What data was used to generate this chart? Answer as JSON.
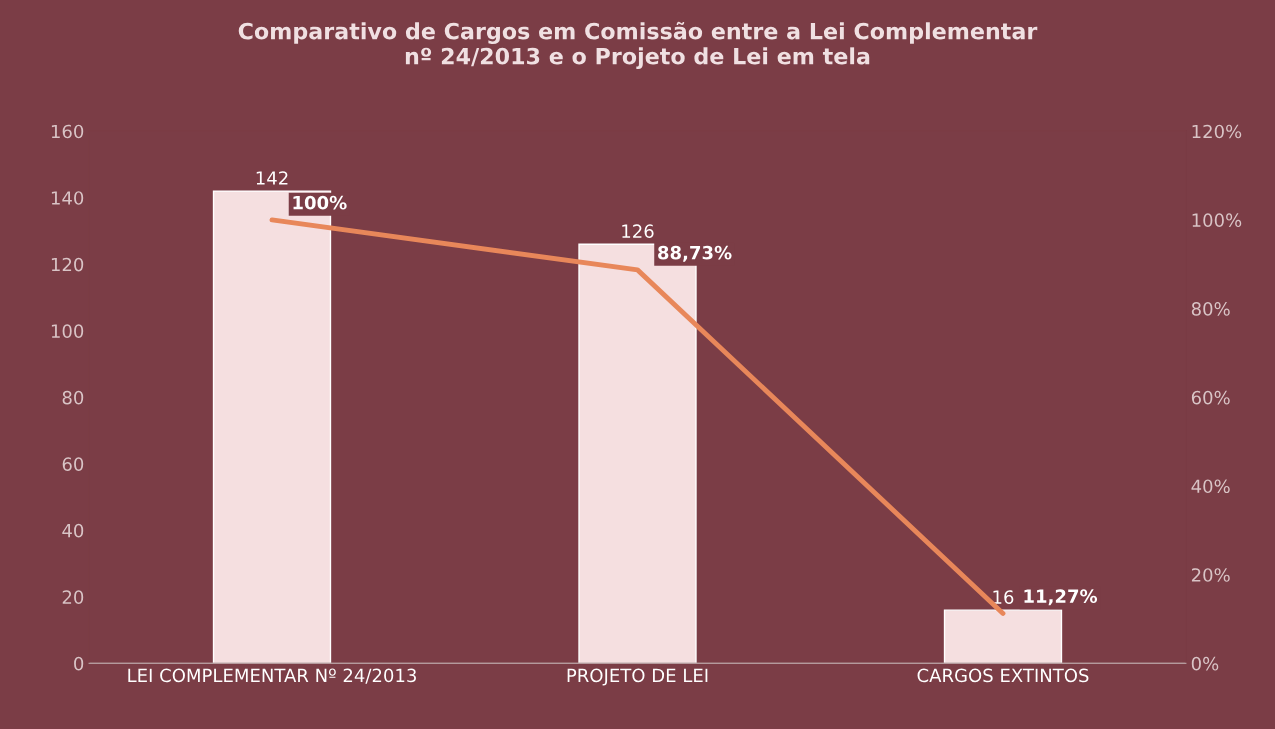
{
  "chart_data": {
    "type": "bar",
    "title": "Comparativo de Cargos em Comissão entre a Lei Complementar\nnº 24/2013 e o Projeto de Lei em tela",
    "categories": [
      "LEI COMPLEMENTAR Nº 24/2013",
      "PROJETO DE LEI",
      "CARGOS EXTINTOS"
    ],
    "series": [
      {
        "color": "#f5dfe0",
        "values": [
          142,
          126,
          16
        ],
        "value_labels": [
          "142",
          "126",
          "16"
        ]
      },
      {
        "type": "line",
        "axis": "y2",
        "color": "#e8875a",
        "values": [
          100,
          88.73,
          11.27
        ],
        "value_labels": [
          "100%",
          "88,73%",
          "11,27%"
        ]
      }
    ],
    "ylim": [
      0,
      160
    ],
    "yticks": [
      0,
      20,
      40,
      60,
      80,
      100,
      120,
      140,
      160
    ],
    "y2lim": [
      0,
      120
    ],
    "y2ticks": [
      {
        "value": 0,
        "label": "0%"
      },
      {
        "value": 20,
        "label": "20%"
      },
      {
        "value": 40,
        "label": "40%"
      },
      {
        "value": 60,
        "label": "60%"
      },
      {
        "value": 80,
        "label": "80%"
      },
      {
        "value": 100,
        "label": "100%"
      },
      {
        "value": 120,
        "label": "120%"
      }
    ],
    "grid": false,
    "marker": "none",
    "line_style": "solid"
  }
}
